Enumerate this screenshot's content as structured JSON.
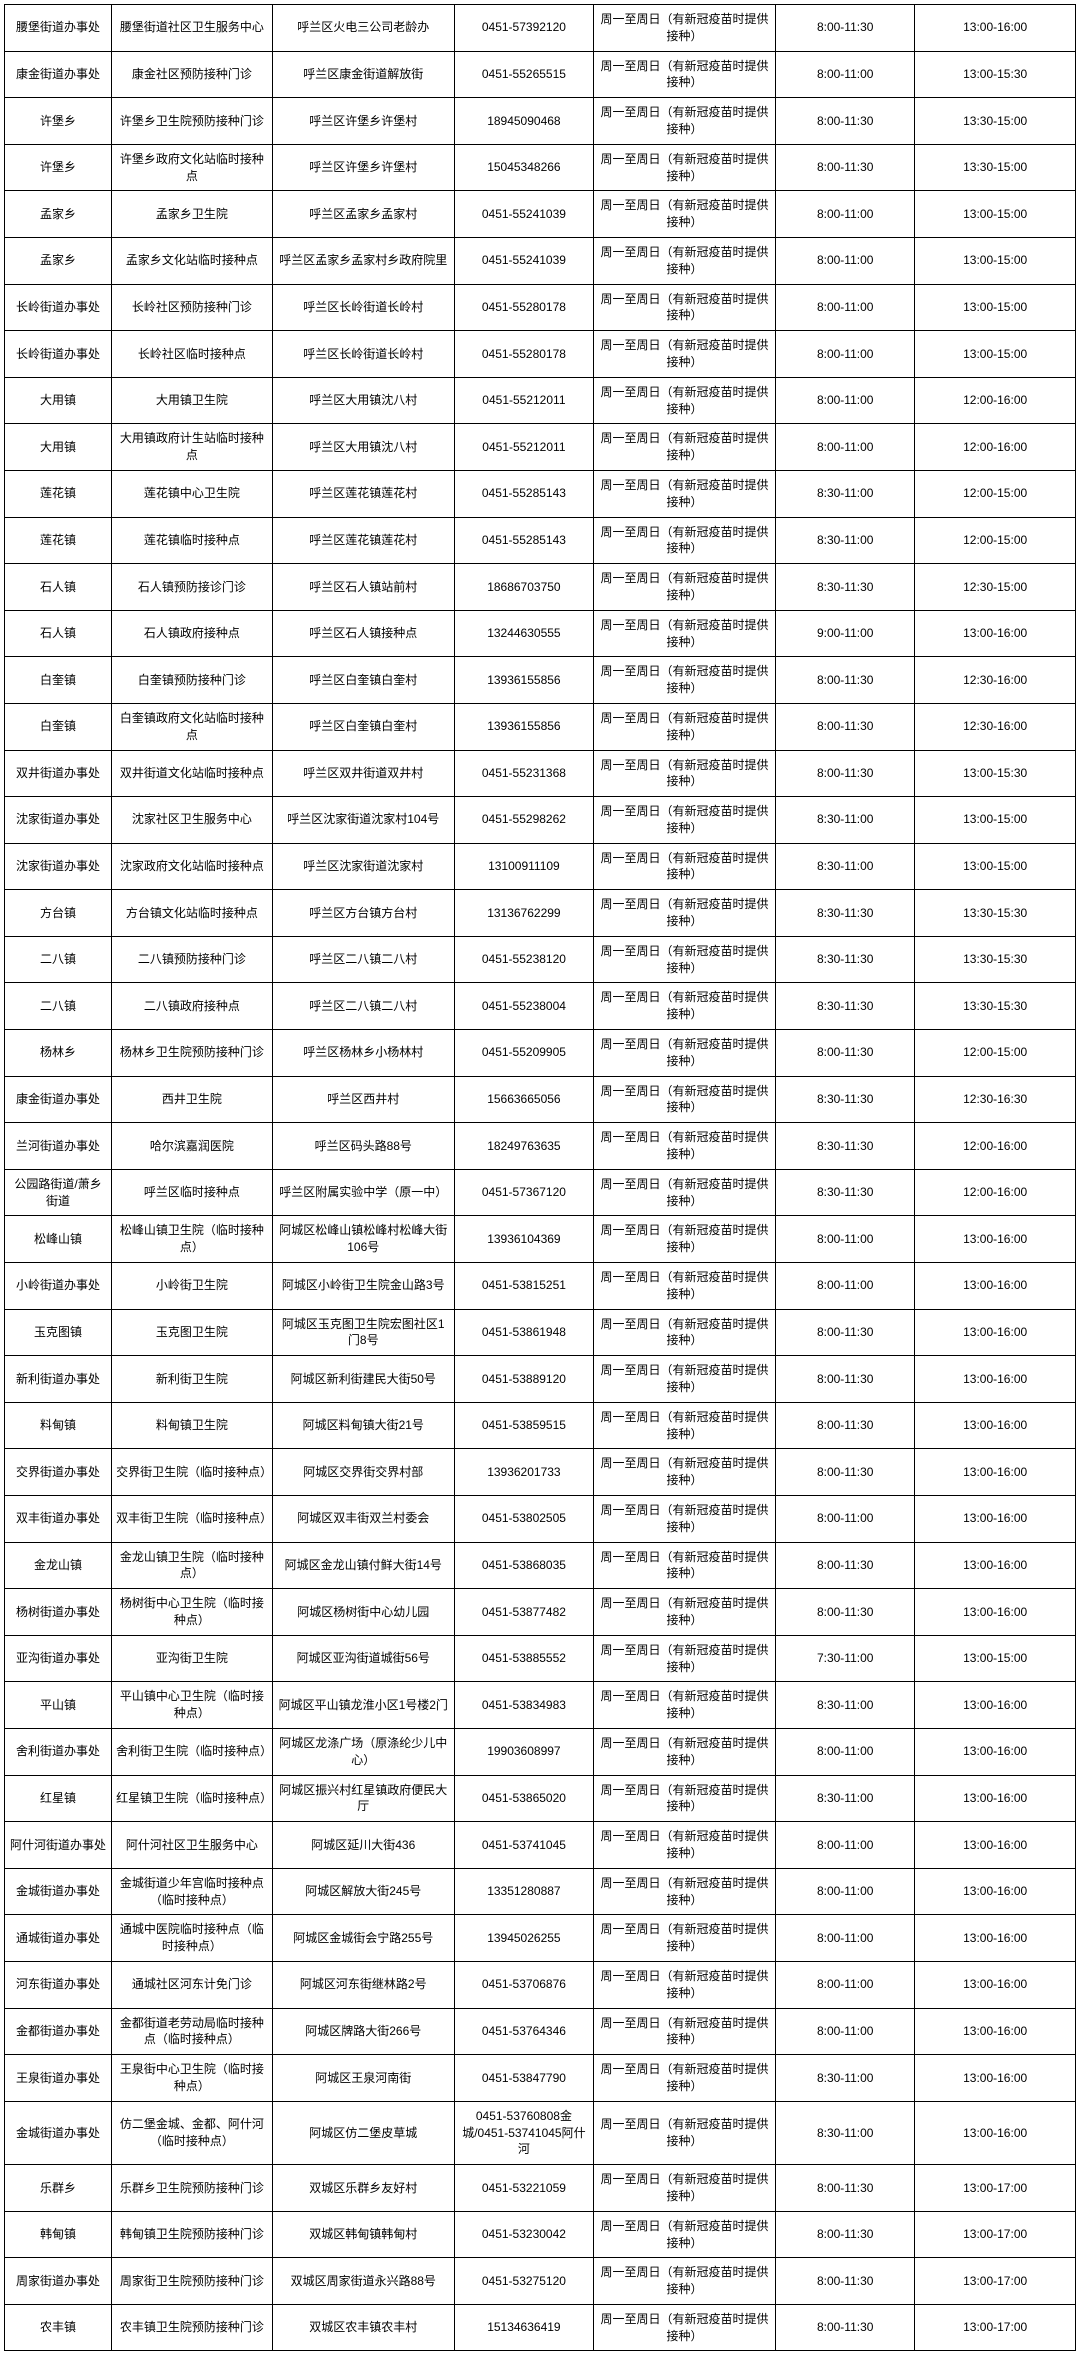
{
  "table": {
    "columns_count": 7,
    "border_color": "#000000",
    "background_color": "#ffffff",
    "text_color": "#000000",
    "font_size": 12,
    "rows": [
      [
        "腰堡街道办事处",
        "腰堡街道社区卫生服务中心",
        "呼兰区火电三公司老龄办",
        "0451-57392120",
        "周一至周日（有新冠疫苗时提供接种）",
        "8:00-11:30",
        "13:00-16:00"
      ],
      [
        "康金街道办事处",
        "康金社区预防接种门诊",
        "呼兰区康金街道解放街",
        "0451-55265515",
        "周一至周日（有新冠疫苗时提供接种）",
        "8:00-11:00",
        "13:00-15:30"
      ],
      [
        "许堡乡",
        "许堡乡卫生院预防接种门诊",
        "呼兰区许堡乡许堡村",
        "18945090468",
        "周一至周日（有新冠疫苗时提供接种）",
        "8:00-11:30",
        "13:30-15:00"
      ],
      [
        "许堡乡",
        "许堡乡政府文化站临时接种点",
        "呼兰区许堡乡许堡村",
        "15045348266",
        "周一至周日（有新冠疫苗时提供接种）",
        "8:00-11:30",
        "13:30-15:00"
      ],
      [
        "孟家乡",
        "孟家乡卫生院",
        "呼兰区孟家乡孟家村",
        "0451-55241039",
        "周一至周日（有新冠疫苗时提供接种）",
        "8:00-11:00",
        "13:00-15:00"
      ],
      [
        "孟家乡",
        "孟家乡文化站临时接种点",
        "呼兰区孟家乡孟家村乡政府院里",
        "0451-55241039",
        "周一至周日（有新冠疫苗时提供接种）",
        "8:00-11:00",
        "13:00-15:00"
      ],
      [
        "长岭街道办事处",
        "长岭社区预防接种门诊",
        "呼兰区长岭街道长岭村",
        "0451-55280178",
        "周一至周日（有新冠疫苗时提供接种）",
        "8:00-11:00",
        "13:00-15:00"
      ],
      [
        "长岭街道办事处",
        "长岭社区临时接种点",
        "呼兰区长岭街道长岭村",
        "0451-55280178",
        "周一至周日（有新冠疫苗时提供接种）",
        "8:00-11:00",
        "13:00-15:00"
      ],
      [
        "大用镇",
        "大用镇卫生院",
        "呼兰区大用镇沈八村",
        "0451-55212011",
        "周一至周日（有新冠疫苗时提供接种）",
        "8:00-11:00",
        "12:00-16:00"
      ],
      [
        "大用镇",
        "大用镇政府计生站临时接种点",
        "呼兰区大用镇沈八村",
        "0451-55212011",
        "周一至周日（有新冠疫苗时提供接种）",
        "8:00-11:00",
        "12:00-16:00"
      ],
      [
        "莲花镇",
        "莲花镇中心卫生院",
        "呼兰区莲花镇莲花村",
        "0451-55285143",
        "周一至周日（有新冠疫苗时提供接种）",
        "8:30-11:00",
        "12:00-15:00"
      ],
      [
        "莲花镇",
        "莲花镇临时接种点",
        "呼兰区莲花镇莲花村",
        "0451-55285143",
        "周一至周日（有新冠疫苗时提供接种）",
        "8:30-11:00",
        "12:00-15:00"
      ],
      [
        "石人镇",
        "石人镇预防接诊门诊",
        "呼兰区石人镇站前村",
        "18686703750",
        "周一至周日（有新冠疫苗时提供接种）",
        "8:30-11:30",
        "12:30-15:00"
      ],
      [
        "石人镇",
        "石人镇政府接种点",
        "呼兰区石人镇接种点",
        "13244630555",
        "周一至周日（有新冠疫苗时提供接种）",
        "9:00-11:00",
        "13:00-16:00"
      ],
      [
        "白奎镇",
        "白奎镇预防接种门诊",
        "呼兰区白奎镇白奎村",
        "13936155856",
        "周一至周日（有新冠疫苗时提供接种）",
        "8:00-11:30",
        "12:30-16:00"
      ],
      [
        "白奎镇",
        "白奎镇政府文化站临时接种点",
        "呼兰区白奎镇白奎村",
        "13936155856",
        "周一至周日（有新冠疫苗时提供接种）",
        "8:00-11:30",
        "12:30-16:00"
      ],
      [
        "双井街道办事处",
        "双井街道文化站临时接种点",
        "呼兰区双井街道双井村",
        "0451-55231368",
        "周一至周日（有新冠疫苗时提供接种）",
        "8:00-11:30",
        "13:00-15:30"
      ],
      [
        "沈家街道办事处",
        "沈家社区卫生服务中心",
        "呼兰区沈家街道沈家村104号",
        "0451-55298262",
        "周一至周日（有新冠疫苗时提供接种）",
        "8:30-11:00",
        "13:00-15:00"
      ],
      [
        "沈家街道办事处",
        "沈家政府文化站临时接种点",
        "呼兰区沈家街道沈家村",
        "13100911109",
        "周一至周日（有新冠疫苗时提供接种）",
        "8:30-11:00",
        "13:00-15:00"
      ],
      [
        "方台镇",
        "方台镇文化站临时接种点",
        "呼兰区方台镇方台村",
        "13136762299",
        "周一至周日（有新冠疫苗时提供接种）",
        "8:30-11:30",
        "13:30-15:30"
      ],
      [
        "二八镇",
        "二八镇预防接种门诊",
        "呼兰区二八镇二八村",
        "0451-55238120",
        "周一至周日（有新冠疫苗时提供接种）",
        "8:30-11:30",
        "13:30-15:30"
      ],
      [
        "二八镇",
        "二八镇政府接种点",
        "呼兰区二八镇二八村",
        "0451-55238004",
        "周一至周日（有新冠疫苗时提供接种）",
        "8:30-11:30",
        "13:30-15:30"
      ],
      [
        "杨林乡",
        "杨林乡卫生院预防接种门诊",
        "呼兰区杨林乡小杨林村",
        "0451-55209905",
        "周一至周日（有新冠疫苗时提供接种）",
        "8:00-11:30",
        "12:00-15:00"
      ],
      [
        "康金街道办事处",
        "西井卫生院",
        "呼兰区西井村",
        "15663665056",
        "周一至周日（有新冠疫苗时提供接种）",
        "8:30-11:30",
        "12:30-16:30"
      ],
      [
        "兰河街道办事处",
        "哈尔滨嘉润医院",
        "呼兰区码头路88号",
        "18249763635",
        "周一至周日（有新冠疫苗时提供接种）",
        "8:30-11:30",
        "12:00-16:00"
      ],
      [
        "公园路街道/萧乡街道",
        "呼兰区临时接种点",
        "呼兰区附属实验中学（原一中）",
        "0451-57367120",
        "周一至周日（有新冠疫苗时提供接种）",
        "8:30-11:30",
        "12:00-16:00"
      ],
      [
        "松峰山镇",
        "松峰山镇卫生院（临时接种点）",
        "阿城区松峰山镇松峰村松峰大街106号",
        "13936104369",
        "周一至周日（有新冠疫苗时提供接种）",
        "8:00-11:00",
        "13:00-16:00"
      ],
      [
        "小岭街道办事处",
        "小岭街卫生院",
        "阿城区小岭街卫生院金山路3号",
        "0451-53815251",
        "周一至周日（有新冠疫苗时提供接种）",
        "8:00-11:00",
        "13:00-16:00"
      ],
      [
        "玉克图镇",
        "玉克图卫生院",
        "阿城区玉克图卫生院宏图社区1门8号",
        "0451-53861948",
        "周一至周日（有新冠疫苗时提供接种）",
        "8:00-11:30",
        "13:00-16:00"
      ],
      [
        "新利街道办事处",
        "新利街卫生院",
        "阿城区新利街建民大街50号",
        "0451-53889120",
        "周一至周日（有新冠疫苗时提供接种）",
        "8:00-11:30",
        "13:00-16:00"
      ],
      [
        "料甸镇",
        "料甸镇卫生院",
        "阿城区料甸镇大街21号",
        "0451-53859515",
        "周一至周日（有新冠疫苗时提供接种）",
        "8:00-11:30",
        "13:00-16:00"
      ],
      [
        "交界街道办事处",
        "交界街卫生院（临时接种点）",
        "阿城区交界街交界村部",
        "13936201733",
        "周一至周日（有新冠疫苗时提供接种）",
        "8:00-11:30",
        "13:00-16:00"
      ],
      [
        "双丰街道办事处",
        "双丰街卫生院（临时接种点）",
        "阿城区双丰街双兰村委会",
        "0451-53802505",
        "周一至周日（有新冠疫苗时提供接种）",
        "8:00-11:00",
        "13:00-16:00"
      ],
      [
        "金龙山镇",
        "金龙山镇卫生院（临时接种点）",
        "阿城区金龙山镇付鲜大街14号",
        "0451-53868035",
        "周一至周日（有新冠疫苗时提供接种）",
        "8:00-11:30",
        "13:00-16:00"
      ],
      [
        "杨树街道办事处",
        "杨树街中心卫生院（临时接种点）",
        "阿城区杨树街中心幼儿园",
        "0451-53877482",
        "周一至周日（有新冠疫苗时提供接种）",
        "8:00-11:30",
        "13:00-16:00"
      ],
      [
        "亚沟街道办事处",
        "亚沟街卫生院",
        "阿城区亚沟街道城街56号",
        "0451-53885552",
        "周一至周日（有新冠疫苗时提供接种）",
        "7:30-11:00",
        "13:00-15:00"
      ],
      [
        "平山镇",
        "平山镇中心卫生院（临时接种点）",
        "阿城区平山镇龙淮小区1号楼2门",
        "0451-53834983",
        "周一至周日（有新冠疫苗时提供接种）",
        "8:30-11:00",
        "13:00-16:00"
      ],
      [
        "舍利街道办事处",
        "舍利街卫生院（临时接种点）",
        "阿城区龙涤广场（原涤纶少儿中心）",
        "19903608997",
        "周一至周日（有新冠疫苗时提供接种）",
        "8:00-11:00",
        "13:00-16:00"
      ],
      [
        "红星镇",
        "红星镇卫生院（临时接种点）",
        "阿城区振兴村红星镇政府便民大厅",
        "0451-53865020",
        "周一至周日（有新冠疫苗时提供接种）",
        "8:30-11:00",
        "13:00-16:00"
      ],
      [
        "阿什河街道办事处",
        "阿什河社区卫生服务中心",
        "阿城区延川大街436",
        "0451-53741045",
        "周一至周日（有新冠疫苗时提供接种）",
        "8:00-11:00",
        "13:00-16:00"
      ],
      [
        "金城街道办事处",
        "金城街道少年宫临时接种点（临时接种点）",
        "阿城区解放大街245号",
        "13351280887",
        "周一至周日（有新冠疫苗时提供接种）",
        "8:00-11:00",
        "13:00-16:00"
      ],
      [
        "通城街道办事处",
        "通城中医院临时接种点（临时接种点）",
        "阿城区金城街会宁路255号",
        "13945026255",
        "周一至周日（有新冠疫苗时提供接种）",
        "8:00-11:00",
        "13:00-16:00"
      ],
      [
        "河东街道办事处",
        "通城社区河东计免门诊",
        "阿城区河东街继林路2号",
        "0451-53706876",
        "周一至周日（有新冠疫苗时提供接种）",
        "8:00-11:00",
        "13:00-16:00"
      ],
      [
        "金都街道办事处",
        "金都街道老劳动局临时接种点（临时接种点）",
        "阿城区牌路大街266号",
        "0451-53764346",
        "周一至周日（有新冠疫苗时提供接种）",
        "8:00-11:00",
        "13:00-16:00"
      ],
      [
        "王泉街道办事处",
        "王泉街中心卫生院（临时接种点）",
        "阿城区王泉河南街",
        "0451-53847790",
        "周一至周日（有新冠疫苗时提供接种）",
        "8:30-11:00",
        "13:00-16:00"
      ],
      [
        "金城街道办事处",
        "仿二堡金城、金都、阿什河（临时接种点）",
        "阿城区仿二堡皮草城",
        "0451-53760808金城/0451-53741045阿什河",
        "周一至周日（有新冠疫苗时提供接种）",
        "8:30-11:00",
        "13:00-16:00"
      ],
      [
        "乐群乡",
        "乐群乡卫生院预防接种门诊",
        "双城区乐群乡友好村",
        "0451-53221059",
        "周一至周日（有新冠疫苗时提供接种）",
        "8:00-11:30",
        "13:00-17:00"
      ],
      [
        "韩甸镇",
        "韩甸镇卫生院预防接种门诊",
        "双城区韩甸镇韩甸村",
        "0451-53230042",
        "周一至周日（有新冠疫苗时提供接种）",
        "8:00-11:30",
        "13:00-17:00"
      ],
      [
        "周家街道办事处",
        "周家街卫生院预防接种门诊",
        "双城区周家街道永兴路88号",
        "0451-53275120",
        "周一至周日（有新冠疫苗时提供接种）",
        "8:00-11:30",
        "13:00-17:00"
      ],
      [
        "农丰镇",
        "农丰镇卫生院预防接种门诊",
        "双城区农丰镇农丰村",
        "15134636419",
        "周一至周日（有新冠疫苗时提供接种）",
        "8:00-11:30",
        "13:00-17:00"
      ]
    ]
  }
}
